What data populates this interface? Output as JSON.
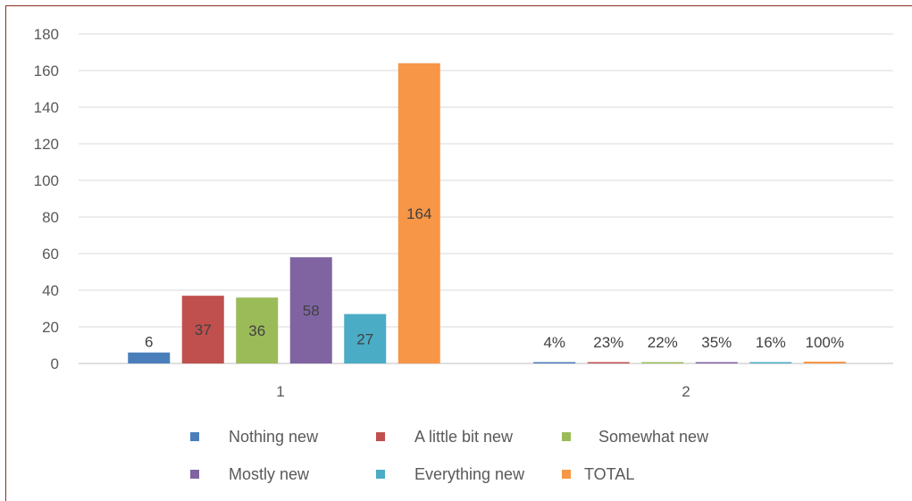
{
  "chart_data": {
    "type": "bar",
    "title": "",
    "xlabel": "",
    "ylabel": "",
    "categories": [
      "1",
      "2"
    ],
    "ylim": [
      0,
      180
    ],
    "yticks": [
      0,
      20,
      40,
      60,
      80,
      100,
      120,
      140,
      160,
      180
    ],
    "grid": true,
    "legend_position": "bottom",
    "series": [
      {
        "name": "Nothing new",
        "color": "#4a7ebb",
        "values": [
          6,
          0.04
        ],
        "labels": [
          "6",
          "4%"
        ]
      },
      {
        "name": "A little bit new",
        "color": "#c0504d",
        "values": [
          37,
          0.23
        ],
        "labels": [
          "37",
          "23%"
        ]
      },
      {
        "name": "Somewhat new",
        "color": "#9bbb59",
        "values": [
          36,
          0.22
        ],
        "labels": [
          "36",
          "22%"
        ]
      },
      {
        "name": "Mostly new",
        "color": "#8064a2",
        "values": [
          58,
          0.35
        ],
        "labels": [
          "58",
          "35%"
        ]
      },
      {
        "name": "Everything new",
        "color": "#4bacc6",
        "values": [
          27,
          0.16
        ],
        "labels": [
          "27",
          "16%"
        ]
      },
      {
        "name": "TOTAL",
        "color": "#f79646",
        "values": [
          164,
          1.0
        ],
        "labels": [
          "164",
          "100%"
        ]
      }
    ]
  }
}
